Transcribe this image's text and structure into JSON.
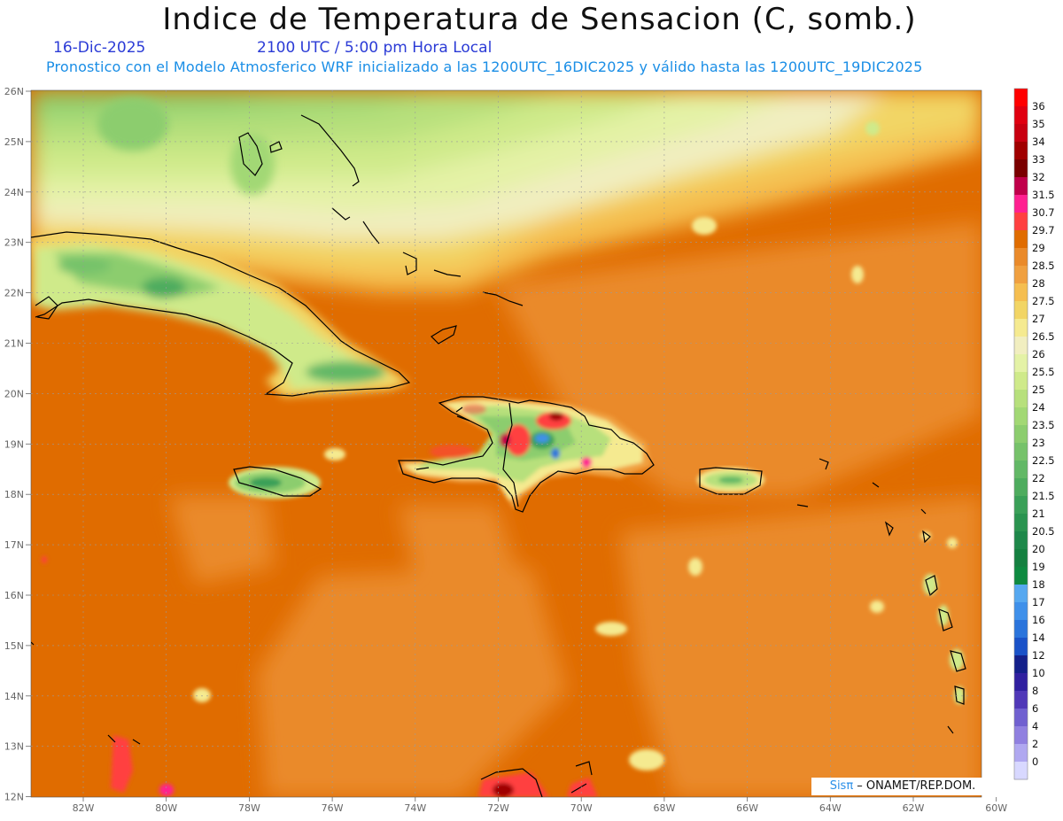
{
  "header": {
    "title": "Indice de Temperatura de Sensacion (C, somb.)",
    "date": "16-Dic-2025",
    "time": "2100 UTC / 5:00 pm Hora Local",
    "model_info": "Pronostico con el Modelo Atmosferico WRF inicializado a las 1200UTC_16DIC2025 y válido hasta las  1200UTC_19DIC2025"
  },
  "axes": {
    "lat_labels": [
      "26N",
      "25N",
      "24N",
      "23N",
      "22N",
      "21N",
      "20N",
      "19N",
      "18N",
      "17N",
      "16N",
      "15N",
      "14N",
      "13N",
      "12N"
    ],
    "lon_labels": [
      "82W",
      "80W",
      "78W",
      "76W",
      "74W",
      "72W",
      "70W",
      "68W",
      "66W",
      "64W",
      "62W",
      "60W"
    ]
  },
  "colorbar": {
    "labels": [
      "36",
      "35",
      "34",
      "33",
      "32",
      "31.5",
      "30.7",
      "29.7",
      "29",
      "28.5",
      "28",
      "27.5",
      "27",
      "26.5",
      "26",
      "25.5",
      "25",
      "24",
      "23.5",
      "23",
      "22.5",
      "22",
      "21.5",
      "21",
      "20.5",
      "20",
      "19",
      "18",
      "17",
      "16",
      "14",
      "12",
      "10",
      "8",
      "6",
      "4",
      "2",
      "0"
    ],
    "colors": [
      "#ff0000",
      "#e00010",
      "#c80010",
      "#a00000",
      "#7a0000",
      "#c0004a",
      "#ff2090",
      "#ff4040",
      "#e06c00",
      "#ea8a2a",
      "#f0a040",
      "#f5be50",
      "#f2d565",
      "#f5ea90",
      "#f1eec0",
      "#e4f2a6",
      "#cfea8a",
      "#b7e07c",
      "#a2d874",
      "#8ccd6e",
      "#76c26a",
      "#62b866",
      "#4eac5e",
      "#3aa058",
      "#2a9450",
      "#1e884a",
      "#158040",
      "#0e8a40",
      "#56a8f0",
      "#3f90ea",
      "#2a74dc",
      "#1a52c8",
      "#14208a",
      "#3020a0",
      "#5038b8",
      "#7060d0",
      "#9080e0",
      "#b0a8f0",
      "#d8d8ff"
    ]
  },
  "credit": {
    "brand": "Sisπ",
    "text": " – ONAMET/REP.DOM."
  }
}
